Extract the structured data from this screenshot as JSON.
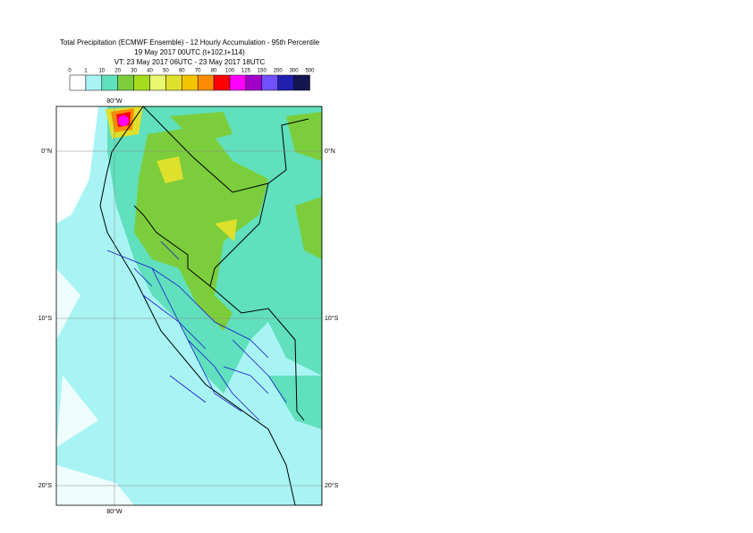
{
  "title": {
    "lines": [
      "Total Precipitation (ECMWF Ensemble) - 12 Hourly Accumulation - 95th Percentile",
      "19 May 2017 00UTC (t+102,t+114)",
      "VT: 23 May 2017 06UTC - 23 May 2017 18UTC"
    ]
  },
  "legend": {
    "labels": [
      "0",
      "1",
      "10",
      "20",
      "30",
      "40",
      "50",
      "60",
      "70",
      "80",
      "100",
      "125",
      "150",
      "200",
      "300",
      "500"
    ],
    "colors": [
      "#ffffff",
      "#a8f4f4",
      "#60e0bc",
      "#7ccd3c",
      "#a6dc1e",
      "#e8f870",
      "#dfe02c",
      "#f5c400",
      "#ff8c00",
      "#ff0000",
      "#ff00ff",
      "#a000c8",
      "#7050ff",
      "#2020b0",
      "#141450"
    ]
  },
  "axes": {
    "top": "80°W",
    "bottom": "80°W",
    "left": [
      "0°N",
      "10°S",
      "20°S"
    ],
    "right": [
      "0°N",
      "10°S",
      "20°S"
    ]
  }
}
